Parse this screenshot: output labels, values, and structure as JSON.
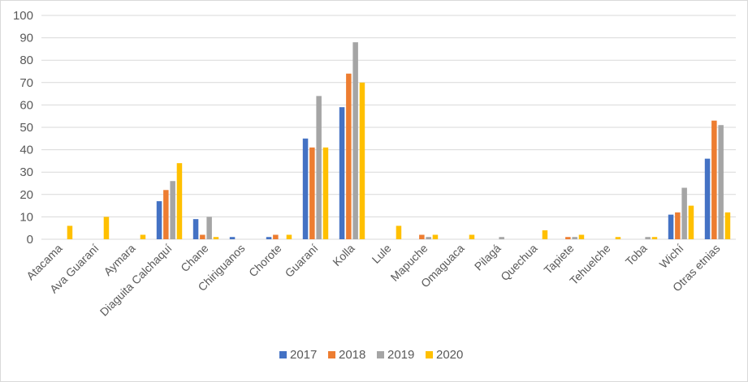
{
  "chart_data": {
    "type": "bar",
    "title": "",
    "xlabel": "",
    "ylabel": "",
    "ylim": [
      0,
      100
    ],
    "yticks": [
      0,
      10,
      20,
      30,
      40,
      50,
      60,
      70,
      80,
      90,
      100
    ],
    "grid": true,
    "legend_position": "bottom",
    "categories": [
      "Atacama",
      "Ava Guaraní",
      "Aymara",
      "Diaguita Calchaquí",
      "Chane",
      "Chiriguanos",
      "Chorote",
      "Guaraní",
      "Kolla",
      "Lule",
      "Mapuche",
      "Omaguaca",
      "Pilagá",
      "Quechua",
      "Tapiete",
      "Tehuelche",
      "Toba",
      "Wichí",
      "Otras etnias"
    ],
    "series": [
      {
        "name": "2017",
        "color": "#4472c4",
        "values": [
          0,
          0,
          0,
          17,
          9,
          1,
          1,
          45,
          59,
          0,
          0,
          0,
          0,
          0,
          0,
          0,
          0,
          11,
          36
        ]
      },
      {
        "name": "2018",
        "color": "#ed7d31",
        "values": [
          0,
          0,
          0,
          22,
          2,
          0,
          2,
          41,
          74,
          0,
          2,
          0,
          0,
          0,
          1,
          0,
          0,
          12,
          53
        ]
      },
      {
        "name": "2019",
        "color": "#a5a5a5",
        "values": [
          0,
          0,
          0,
          26,
          10,
          0,
          0,
          64,
          88,
          0,
          1,
          0,
          1,
          0,
          1,
          0,
          1,
          23,
          51
        ]
      },
      {
        "name": "2020",
        "color": "#ffc000",
        "values": [
          6,
          10,
          2,
          34,
          1,
          0,
          2,
          41,
          70,
          6,
          2,
          2,
          0,
          4,
          2,
          1,
          1,
          15,
          12
        ]
      }
    ]
  }
}
